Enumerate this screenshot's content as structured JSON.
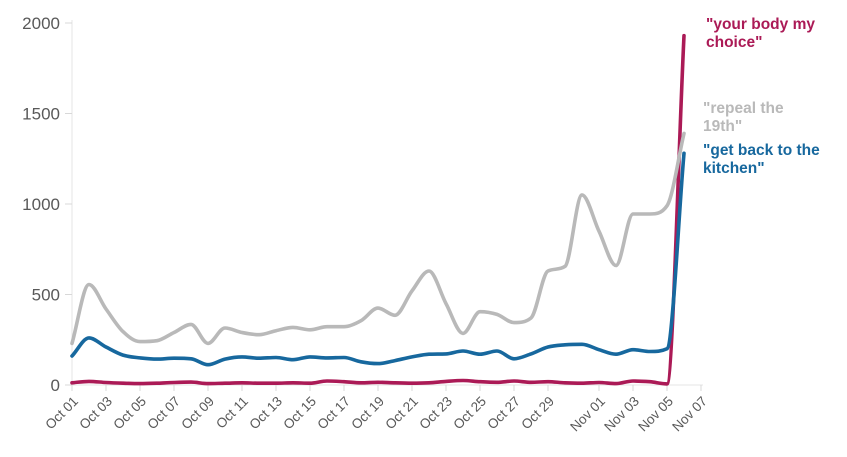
{
  "chart_data": {
    "type": "line",
    "title": "",
    "xlabel": "",
    "ylabel": "",
    "grid": false,
    "legend_position": "right-annotations",
    "x_axis": {
      "unit": "date",
      "day_max": 37,
      "tick_labels": [
        "Oct 01",
        "Oct 03",
        "Oct 05",
        "Oct 07",
        "Oct 09",
        "Oct 11",
        "Oct 13",
        "Oct 15",
        "Oct 17",
        "Oct 19",
        "Oct 21",
        "Oct 23",
        "Oct 25",
        "Oct 27",
        "Oct 29",
        "Nov 01",
        "Nov 03",
        "Nov 05",
        "Nov 07"
      ],
      "tick_days": [
        0,
        2,
        4,
        6,
        8,
        10,
        12,
        14,
        16,
        18,
        20,
        22,
        24,
        26,
        28,
        31,
        33,
        35,
        37
      ]
    },
    "y_axis": {
      "ticks": [
        0,
        500,
        1000,
        1500,
        2000
      ],
      "range": [
        0,
        2000
      ]
    },
    "dates": [
      "Oct 01",
      "Oct 02",
      "Oct 03",
      "Oct 04",
      "Oct 05",
      "Oct 06",
      "Oct 07",
      "Oct 08",
      "Oct 09",
      "Oct 10",
      "Oct 11",
      "Oct 12",
      "Oct 13",
      "Oct 14",
      "Oct 15",
      "Oct 16",
      "Oct 17",
      "Oct 18",
      "Oct 19",
      "Oct 20",
      "Oct 21",
      "Oct 22",
      "Oct 23",
      "Oct 24",
      "Oct 25",
      "Oct 26",
      "Oct 27",
      "Oct 28",
      "Oct 29",
      "Oct 30",
      "Oct 31",
      "Nov 01",
      "Nov 02",
      "Nov 03",
      "Nov 04",
      "Nov 05",
      "Nov 06"
    ],
    "day_offsets": [
      0,
      1,
      2,
      3,
      4,
      5,
      6,
      7,
      8,
      9,
      10,
      11,
      12,
      13,
      14,
      15,
      16,
      17,
      18,
      19,
      20,
      21,
      22,
      23,
      24,
      25,
      26,
      27,
      28,
      29,
      30,
      31,
      32,
      33,
      34,
      35,
      36
    ],
    "draw_order": [
      0,
      1,
      2
    ],
    "series": [
      {
        "id": "your-body-my-choice",
        "name": "\"your body my choice\"",
        "color": "#ab1a56",
        "values": [
          12,
          20,
          14,
          10,
          8,
          10,
          14,
          16,
          8,
          10,
          12,
          10,
          10,
          12,
          10,
          22,
          18,
          12,
          15,
          12,
          10,
          12,
          20,
          25,
          18,
          15,
          22,
          15,
          18,
          12,
          10,
          14,
          8,
          22,
          18,
          6,
          1930
        ]
      },
      {
        "id": "repeal-the-19th",
        "name": "\"repeal the 19th\"",
        "color": "#b9b9b9",
        "values": [
          230,
          555,
          420,
          295,
          240,
          245,
          290,
          335,
          230,
          315,
          290,
          278,
          300,
          318,
          305,
          322,
          322,
          355,
          425,
          385,
          520,
          630,
          450,
          285,
          405,
          390,
          345,
          370,
          630,
          655,
          1050,
          850,
          660,
          945,
          945,
          990,
          1390
        ]
      },
      {
        "id": "get-back-to-the-kitchen",
        "name": "\"get back to the kitchen\"",
        "color": "#17689e",
        "values": [
          160,
          260,
          210,
          165,
          150,
          143,
          148,
          145,
          112,
          143,
          155,
          148,
          152,
          140,
          155,
          150,
          152,
          128,
          118,
          135,
          155,
          170,
          172,
          188,
          170,
          188,
          145,
          172,
          210,
          222,
          225,
          195,
          170,
          195,
          185,
          200,
          1280
        ]
      }
    ],
    "style": {
      "axis_line_color": "#e4e4e4",
      "tick_mark_color": "#d8d8d8",
      "tick_label_color": "#595959",
      "line_width": 3.6
    }
  }
}
